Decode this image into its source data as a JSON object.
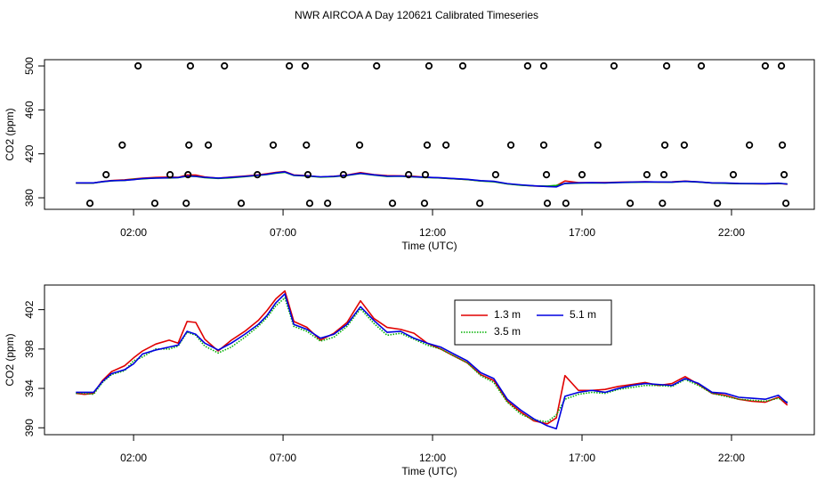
{
  "title": "NWR AIRCOA A  Day 120621  Calibrated Timeseries",
  "chart_data": [
    {
      "type": "line",
      "y_label": "CO2 (ppm)",
      "x_label": "Time (UTC)",
      "xlim": [
        -0.98,
        24.77
      ],
      "xticks": [
        {
          "value": 2,
          "label": "02:00"
        },
        {
          "value": 7,
          "label": "07:00"
        },
        {
          "value": 12,
          "label": "12:00"
        },
        {
          "value": 17,
          "label": "17:00"
        },
        {
          "value": 22,
          "label": "22:00"
        }
      ],
      "ylim": [
        369.5,
        505.7
      ],
      "yticks": [
        380,
        420,
        460,
        500
      ],
      "x": [
        0.07,
        0.36,
        0.66,
        0.96,
        1.26,
        1.7,
        2.0,
        2.3,
        2.74,
        3.19,
        3.49,
        3.79,
        4.08,
        4.38,
        4.83,
        5.27,
        5.72,
        6.17,
        6.46,
        6.76,
        7.06,
        7.36,
        7.8,
        8.25,
        8.7,
        9.14,
        9.59,
        10.04,
        10.48,
        10.93,
        11.38,
        11.82,
        12.27,
        12.71,
        13.16,
        13.61,
        14.05,
        14.5,
        14.95,
        15.39,
        15.84,
        16.14,
        16.43,
        16.88,
        17.33,
        17.77,
        18.22,
        18.67,
        19.11,
        19.56,
        20.01,
        20.45,
        20.9,
        21.35,
        21.79,
        22.24,
        22.68,
        23.13,
        23.57,
        23.87
      ],
      "series": [
        {
          "color": "#e00000",
          "values": [
            393.5,
            393.4,
            393.5,
            394.8,
            395.7,
            396.3,
            397.1,
            397.8,
            398.5,
            398.9,
            398.6,
            400.8,
            400.7,
            399.0,
            397.8,
            398.9,
            399.8,
            400.9,
            401.9,
            403.1,
            403.9,
            400.8,
            400.2,
            398.9,
            399.6,
            400.7,
            402.9,
            401.1,
            400.2,
            400.0,
            399.6,
            398.6,
            398.0,
            397.3,
            396.6,
            395.4,
            394.8,
            392.7,
            391.6,
            390.7,
            390.4,
            391.0,
            395.3,
            393.8,
            393.8,
            393.9,
            394.2,
            394.4,
            394.6,
            394.3,
            394.5,
            395.2,
            394.4,
            393.5,
            393.3,
            392.9,
            392.7,
            392.6,
            393.1,
            392.3
          ]
        },
        {
          "color": "#00b000",
          "values": [
            393.5,
            393.5,
            393.4,
            394.6,
            395.4,
            395.8,
            396.8,
            397.2,
            398.0,
            398.0,
            398.3,
            399.7,
            399.4,
            398.3,
            397.6,
            398.2,
            399.2,
            400.3,
            401.2,
            402.4,
            403.2,
            400.3,
            399.8,
            398.8,
            399.2,
            400.3,
            402.1,
            400.6,
            399.4,
            399.6,
            399.0,
            398.4,
            398.0,
            397.3,
            396.6,
            395.3,
            394.6,
            392.6,
            391.4,
            390.8,
            390.6,
            391.3,
            392.9,
            393.4,
            393.6,
            393.5,
            393.9,
            394.1,
            394.3,
            394.3,
            394.2,
            394.9,
            394.3,
            393.5,
            393.2,
            392.9,
            392.8,
            392.7,
            393.0,
            392.6
          ]
        },
        {
          "color": "#0000e0",
          "values": [
            393.6,
            393.6,
            393.6,
            394.7,
            395.5,
            395.9,
            396.5,
            397.5,
            397.9,
            398.2,
            398.4,
            399.8,
            399.5,
            398.6,
            397.9,
            398.6,
            399.5,
            400.5,
            401.4,
            402.7,
            403.6,
            400.5,
            400.0,
            399.1,
            399.5,
            400.5,
            402.3,
            400.9,
            399.7,
            399.8,
            399.1,
            398.6,
            398.2,
            397.5,
            396.8,
            395.6,
            395.0,
            392.9,
            391.8,
            390.9,
            390.2,
            389.9,
            393.2,
            393.6,
            393.8,
            393.6,
            394.0,
            394.3,
            394.5,
            394.4,
            394.3,
            395.0,
            394.5,
            393.6,
            393.5,
            393.1,
            393.0,
            392.9,
            393.3,
            392.5
          ]
        }
      ],
      "points": {
        "color": "#000000",
        "x": [
          2.15,
          3.9,
          5.04,
          7.21,
          7.74,
          10.13,
          11.88,
          13.01,
          15.18,
          15.72,
          18.07,
          19.83,
          20.99,
          23.13,
          23.67,
          1.62,
          3.85,
          4.5,
          6.67,
          7.78,
          9.56,
          11.82,
          12.45,
          14.62,
          15.72,
          17.53,
          19.77,
          20.42,
          22.6,
          23.7,
          1.08,
          3.22,
          3.82,
          6.14,
          7.83,
          9.02,
          11.2,
          11.76,
          14.11,
          15.81,
          17.0,
          19.17,
          19.74,
          22.06,
          23.76,
          0.54,
          2.71,
          3.76,
          5.6,
          7.89,
          8.49,
          10.66,
          11.73,
          13.58,
          15.84,
          16.46,
          18.61,
          19.69,
          21.53,
          23.82
        ],
        "values": [
          500,
          500,
          500,
          500,
          500,
          500,
          500,
          500,
          500,
          500,
          500,
          500,
          500,
          500,
          500,
          428,
          428,
          428,
          428,
          428,
          428,
          428,
          428,
          428,
          428,
          428,
          428,
          428,
          428,
          428,
          401,
          401,
          401,
          401,
          401,
          401,
          401,
          401,
          401,
          401,
          401,
          401,
          401,
          401,
          401,
          375,
          375,
          375,
          375,
          375,
          375,
          375,
          375,
          375,
          375,
          375,
          375,
          375,
          375,
          375
        ]
      }
    },
    {
      "type": "line",
      "y_label": "CO2 (ppm)",
      "x_label": "Time (UTC)",
      "xlim": [
        -0.98,
        24.77
      ],
      "xticks": [
        {
          "value": 2,
          "label": "02:00"
        },
        {
          "value": 7,
          "label": "07:00"
        },
        {
          "value": 12,
          "label": "12:00"
        },
        {
          "value": 17,
          "label": "17:00"
        },
        {
          "value": 22,
          "label": "22:00"
        }
      ],
      "ylim": [
        389.3,
        404.5
      ],
      "yticks": [
        390,
        394,
        398,
        402
      ],
      "x": [
        0.07,
        0.36,
        0.66,
        0.96,
        1.26,
        1.7,
        2.0,
        2.3,
        2.74,
        3.19,
        3.49,
        3.79,
        4.08,
        4.38,
        4.83,
        5.27,
        5.72,
        6.17,
        6.46,
        6.76,
        7.06,
        7.36,
        7.8,
        8.25,
        8.7,
        9.14,
        9.59,
        10.04,
        10.48,
        10.93,
        11.38,
        11.82,
        12.27,
        12.71,
        13.16,
        13.61,
        14.05,
        14.5,
        14.95,
        15.39,
        15.84,
        16.14,
        16.43,
        16.88,
        17.33,
        17.77,
        18.22,
        18.67,
        19.11,
        19.56,
        20.01,
        20.45,
        20.9,
        21.35,
        21.79,
        22.24,
        22.68,
        23.13,
        23.57,
        23.87
      ],
      "series": [
        {
          "name": "1.3 m",
          "color": "#e00000",
          "values": [
            393.5,
            393.4,
            393.5,
            394.8,
            395.7,
            396.3,
            397.1,
            397.8,
            398.5,
            398.9,
            398.6,
            400.8,
            400.7,
            399.0,
            397.8,
            398.9,
            399.8,
            400.9,
            401.9,
            403.1,
            403.9,
            400.8,
            400.2,
            398.9,
            399.6,
            400.7,
            402.9,
            401.1,
            400.2,
            400.0,
            399.6,
            398.6,
            398.0,
            397.3,
            396.6,
            395.4,
            394.8,
            392.7,
            391.6,
            390.7,
            390.4,
            391.0,
            395.3,
            393.8,
            393.8,
            393.9,
            394.2,
            394.4,
            394.6,
            394.3,
            394.5,
            395.2,
            394.4,
            393.5,
            393.3,
            392.9,
            392.7,
            392.6,
            393.1,
            392.3
          ]
        },
        {
          "name": "3.5 m",
          "color": "#00b000",
          "linestyle": "dotted",
          "values": [
            393.5,
            393.5,
            393.4,
            394.6,
            395.4,
            395.8,
            396.8,
            397.2,
            398.0,
            398.0,
            398.3,
            399.7,
            399.4,
            398.3,
            397.6,
            398.2,
            399.2,
            400.3,
            401.2,
            402.4,
            403.2,
            400.3,
            399.8,
            398.8,
            399.2,
            400.3,
            402.1,
            400.6,
            399.4,
            399.6,
            399.0,
            398.4,
            398.0,
            397.3,
            396.6,
            395.3,
            394.6,
            392.6,
            391.4,
            390.8,
            390.6,
            391.3,
            392.9,
            393.4,
            393.6,
            393.5,
            393.9,
            394.1,
            394.3,
            394.3,
            394.2,
            394.9,
            394.3,
            393.5,
            393.2,
            392.9,
            392.8,
            392.7,
            393.0,
            392.6
          ]
        },
        {
          "name": "5.1 m",
          "color": "#0000e0",
          "values": [
            393.6,
            393.6,
            393.6,
            394.7,
            395.5,
            395.9,
            396.5,
            397.5,
            397.9,
            398.2,
            398.4,
            399.8,
            399.5,
            398.6,
            397.9,
            398.6,
            399.5,
            400.5,
            401.4,
            402.7,
            403.6,
            400.5,
            400.0,
            399.1,
            399.5,
            400.5,
            402.3,
            400.9,
            399.7,
            399.8,
            399.1,
            398.6,
            398.2,
            397.5,
            396.8,
            395.6,
            395.0,
            392.9,
            391.8,
            390.9,
            390.2,
            389.9,
            393.2,
            393.6,
            393.8,
            393.6,
            394.0,
            394.3,
            394.5,
            394.4,
            394.3,
            395.0,
            394.5,
            393.6,
            393.5,
            393.1,
            393.0,
            392.9,
            393.3,
            392.5
          ]
        }
      ]
    }
  ]
}
